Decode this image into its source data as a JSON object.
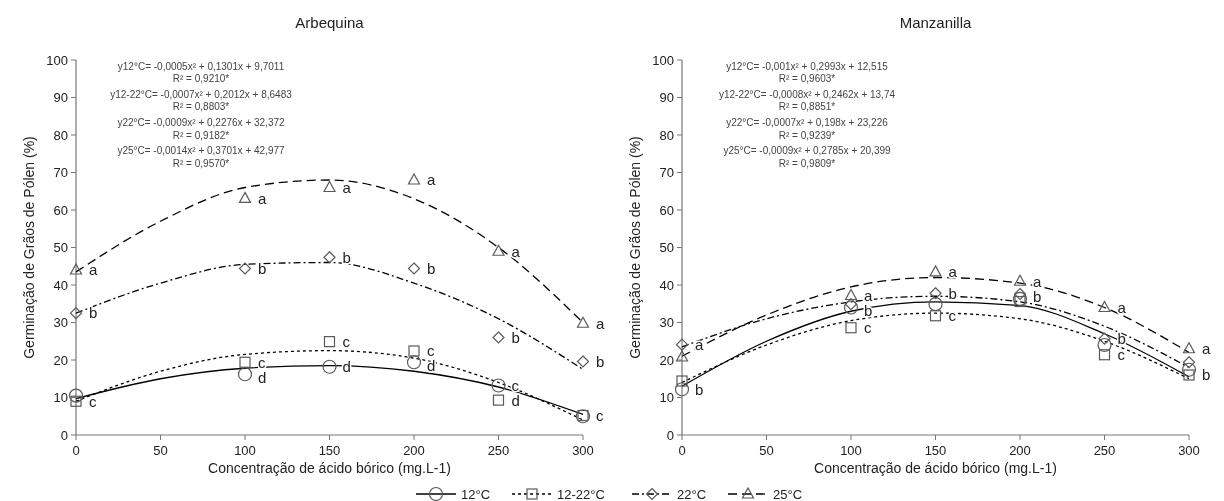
{
  "chart_data": [
    {
      "type": "scatter",
      "title": "Arbequina",
      "xlabel": "Concentração de ácido bórico (mg.L-1)",
      "ylabel": "Germinação de Grãos de Pólen (%)",
      "xlim": [
        0,
        300
      ],
      "xticks": [
        0,
        50,
        100,
        150,
        200,
        250,
        300
      ],
      "ylim": [
        0,
        100
      ],
      "yticks": [
        0,
        10,
        20,
        30,
        40,
        50,
        60,
        70,
        80,
        90,
        100
      ],
      "legend": "bottom",
      "series": [
        {
          "name": "12°C",
          "marker": "circle",
          "color": "#595959",
          "x": [
            0,
            100,
            150,
            200,
            250,
            300
          ],
          "values": [
            10.5,
            16.2,
            18.2,
            19.4,
            13.2,
            5
          ],
          "value_labels": [
            null,
            "d",
            "d",
            "d",
            "c",
            null
          ]
        },
        {
          "name": "12-22°C",
          "marker": "square",
          "color": "#595959",
          "x": [
            0,
            100,
            150,
            200,
            250,
            300
          ],
          "values": [
            9,
            19.4,
            24.9,
            22.4,
            9.3,
            5.2
          ],
          "value_labels": [
            "c",
            "c",
            "c",
            "c",
            "d",
            "c"
          ]
        },
        {
          "name": "22°C",
          "marker": "diamond",
          "color": "#595959",
          "x": [
            0,
            100,
            150,
            200,
            250,
            300
          ],
          "values": [
            32.5,
            44.4,
            47.4,
            44.4,
            26,
            19.6
          ],
          "value_labels": [
            "b",
            "b",
            "b",
            "b",
            "b",
            "b"
          ]
        },
        {
          "name": "25°C",
          "marker": "triangle",
          "color": "#595959",
          "x": [
            0,
            100,
            150,
            200,
            250,
            300
          ],
          "values": [
            44,
            63.1,
            66,
            68,
            49,
            29.8
          ],
          "value_labels": [
            "a",
            "a",
            "a",
            "a",
            "a",
            "a"
          ]
        },
        {
          "type": "line",
          "line_style": "solid",
          "marker": "none",
          "color": "#000000",
          "x": [
            0,
            50,
            100,
            150,
            200,
            250,
            300
          ],
          "values": [
            9.7,
            15,
            17.8,
            18.5,
            17,
            12.8,
            5.5
          ]
        },
        {
          "type": "line",
          "line_style": "dotted",
          "marker": "none",
          "color": "#000000",
          "x": [
            0,
            50,
            100,
            150,
            200,
            250,
            300
          ],
          "values": [
            9,
            17,
            21.5,
            22.5,
            20.5,
            14,
            4
          ]
        },
        {
          "type": "line",
          "line_style": "dashdot",
          "marker": "none",
          "color": "#000000",
          "x": [
            0,
            50,
            100,
            150,
            200,
            250,
            300
          ],
          "values": [
            32.5,
            40.5,
            45.5,
            46,
            40.5,
            31,
            17.5
          ]
        },
        {
          "type": "line",
          "line_style": "dashed",
          "marker": "none",
          "color": "#000000",
          "x": [
            0,
            50,
            100,
            150,
            200,
            250,
            300
          ],
          "values": [
            43.5,
            57,
            66,
            68,
            63,
            50,
            30
          ]
        }
      ],
      "annotations": [
        "y12°C= -0,0005x² + 0,1301x + 9,7011",
        "R² = 0,9210*",
        "y12-22°C= -0,0007x² + 0,2012x + 8,6483",
        "R² = 0,8803*",
        "y22°C= -0,0009x² + 0,2276x + 32,372",
        "R² = 0,9182*",
        "y25°C= -0,0014x² + 0,3701x + 42,977",
        "R² = 0,9570*"
      ]
    },
    {
      "type": "scatter",
      "title": "Manzanilla",
      "xlabel": "Concentração de ácido bórico (mg.L-1)",
      "ylabel": "Germinação de Grãos de Pólen (%)",
      "xlim": [
        0,
        300
      ],
      "xticks": [
        0,
        50,
        100,
        150,
        200,
        250,
        300
      ],
      "ylim": [
        0,
        100
      ],
      "yticks": [
        0,
        10,
        20,
        30,
        40,
        50,
        60,
        70,
        80,
        90,
        100
      ],
      "series": [
        {
          "marker": "circle",
          "color": "#595959",
          "x": [
            0,
            100,
            150,
            200,
            250,
            300
          ],
          "values": [
            12.2,
            34,
            34.9,
            36.3,
            24,
            17.4
          ],
          "value_labels": [
            "b",
            null,
            null,
            null,
            null,
            null
          ]
        },
        {
          "marker": "square",
          "color": "#595959",
          "x": [
            0,
            100,
            150,
            200,
            250,
            300
          ],
          "values": [
            14.4,
            28.6,
            31.8,
            35.6,
            21.4,
            16
          ],
          "value_labels": [
            null,
            "c",
            "c",
            null,
            "c",
            "b"
          ]
        },
        {
          "marker": "diamond",
          "color": "#595959",
          "x": [
            0,
            100,
            150,
            200,
            250,
            300
          ],
          "values": [
            24.1,
            34.9,
            37.8,
            37.6,
            25.7,
            19.4
          ],
          "value_labels": [
            "a",
            "b",
            "b",
            "b",
            "b",
            null
          ]
        },
        {
          "marker": "triangle",
          "color": "#595959",
          "x": [
            0,
            100,
            150,
            200,
            250,
            300
          ],
          "values": [
            20.8,
            37.2,
            43.5,
            41,
            34,
            23
          ],
          "value_labels": [
            null,
            "a",
            "a",
            "a",
            "a",
            "a"
          ]
        },
        {
          "type": "line",
          "line_style": "solid",
          "marker": "none",
          "color": "#000000",
          "x": [
            0,
            50,
            100,
            150,
            200,
            250,
            300
          ],
          "values": [
            13,
            25,
            33,
            35.5,
            34.5,
            27,
            15.5
          ]
        },
        {
          "type": "line",
          "line_style": "dotted",
          "marker": "none",
          "color": "#000000",
          "x": [
            0,
            50,
            100,
            150,
            200,
            250,
            300
          ],
          "values": [
            14,
            24,
            30.5,
            32.5,
            31,
            25,
            15
          ]
        },
        {
          "type": "line",
          "line_style": "dashdot",
          "marker": "none",
          "color": "#000000",
          "x": [
            0,
            50,
            100,
            150,
            200,
            250,
            300
          ],
          "values": [
            23.5,
            31,
            35.5,
            37,
            35.5,
            29,
            18
          ]
        },
        {
          "type": "line",
          "line_style": "dashed",
          "marker": "none",
          "color": "#000000",
          "x": [
            0,
            50,
            100,
            150,
            200,
            250,
            300
          ],
          "values": [
            21,
            32,
            39.5,
            42,
            40.5,
            34,
            22
          ]
        }
      ],
      "annotations": [
        "y12°C= -0,001x² + 0,2993x + 12,515",
        "R² = 0,9603*",
        "y12-22°C= -0,0008x² + 0,2462x + 13,74",
        "R² = 0,8851*",
        "y22°C= -0,0007x² + 0,198x + 23,226",
        "R² = 0,9239*",
        "y25°C= -0,0009x² + 0,2785x + 20,399",
        "R² = 0,9809*"
      ]
    }
  ]
}
